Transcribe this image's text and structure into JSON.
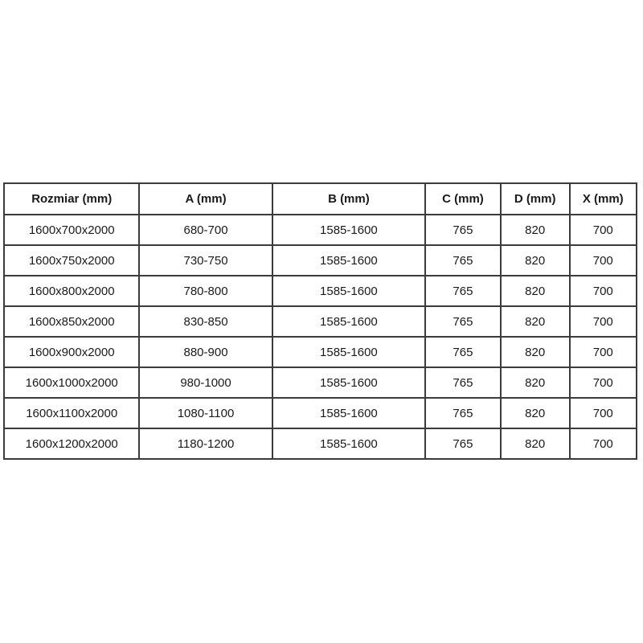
{
  "page": {
    "background_color": "#ffffff",
    "border_color": "#3b3b3b",
    "text_color": "#1a1a1a"
  },
  "table": {
    "columns": [
      "Rozmiar (mm)",
      "A (mm)",
      "B (mm)",
      "C (mm)",
      "D (mm)",
      "X (mm)"
    ],
    "rows": [
      [
        "1600x700x2000",
        "680-700",
        "1585-1600",
        "765",
        "820",
        "700"
      ],
      [
        "1600x750x2000",
        "730-750",
        "1585-1600",
        "765",
        "820",
        "700"
      ],
      [
        "1600x800x2000",
        "780-800",
        "1585-1600",
        "765",
        "820",
        "700"
      ],
      [
        "1600x850x2000",
        "830-850",
        "1585-1600",
        "765",
        "820",
        "700"
      ],
      [
        "1600x900x2000",
        "880-900",
        "1585-1600",
        "765",
        "820",
        "700"
      ],
      [
        "1600x1000x2000",
        "980-1000",
        "1585-1600",
        "765",
        "820",
        "700"
      ],
      [
        "1600x1100x2000",
        "1080-1100",
        "1585-1600",
        "765",
        "820",
        "700"
      ],
      [
        "1600x1200x2000",
        "1180-1200",
        "1585-1600",
        "765",
        "820",
        "700"
      ]
    ]
  }
}
